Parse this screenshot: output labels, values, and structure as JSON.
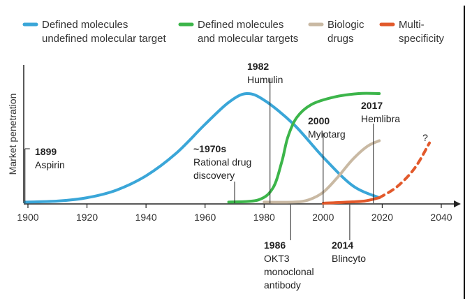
{
  "chart_data": {
    "type": "line",
    "title": "",
    "xlabel": "",
    "ylabel": "Market penetration",
    "xlim": [
      1899,
      2048
    ],
    "ylim": [
      0,
      100
    ],
    "x_ticks": [
      1900,
      1920,
      1940,
      1960,
      1980,
      2000,
      2020,
      2040
    ],
    "grid": false,
    "legend_position": "top",
    "series": [
      {
        "name": "Defined molecules undefined molecular target",
        "legend_lines": [
          "Defined molecules",
          "undefined molecular target"
        ],
        "color": "#3aa6d8",
        "style": "solid",
        "points": [
          [
            1899,
            1
          ],
          [
            1910,
            2
          ],
          [
            1920,
            5
          ],
          [
            1930,
            12
          ],
          [
            1940,
            25
          ],
          [
            1950,
            45
          ],
          [
            1960,
            72
          ],
          [
            1968,
            92
          ],
          [
            1974,
            100
          ],
          [
            1980,
            94
          ],
          [
            1990,
            72
          ],
          [
            2000,
            42
          ],
          [
            2010,
            16
          ],
          [
            2019,
            5
          ]
        ]
      },
      {
        "name": "Defined molecules and molecular targets",
        "legend_lines": [
          "Defined molecules",
          "and molecular targets"
        ],
        "color": "#3cb54a",
        "style": "solid",
        "points": [
          [
            1968,
            1
          ],
          [
            1978,
            3
          ],
          [
            1983,
            14
          ],
          [
            1986,
            38
          ],
          [
            1988,
            60
          ],
          [
            1991,
            78
          ],
          [
            1996,
            90
          ],
          [
            2004,
            97
          ],
          [
            2012,
            100
          ],
          [
            2019,
            100
          ]
        ]
      },
      {
        "name": "Biologic drugs",
        "legend_lines": [
          "Biologic",
          "drugs"
        ],
        "color": "#c9b9a3",
        "style": "solid",
        "points": [
          [
            1980,
            1
          ],
          [
            1990,
            1
          ],
          [
            1995,
            3
          ],
          [
            2000,
            10
          ],
          [
            2005,
            24
          ],
          [
            2010,
            40
          ],
          [
            2015,
            52
          ],
          [
            2019,
            57
          ]
        ]
      },
      {
        "name": "Multi-specificity",
        "legend_lines": [
          "Multi-",
          "specificity"
        ],
        "color": "#e2592b",
        "style": "solid",
        "points": [
          [
            2000,
            0
          ],
          [
            2008,
            1
          ],
          [
            2014,
            2
          ],
          [
            2019,
            5
          ]
        ]
      },
      {
        "name": "Multi-specificity (projected)",
        "legend_lines": [],
        "color": "#e2592b",
        "style": "dashed",
        "points": [
          [
            2019,
            5
          ],
          [
            2025,
            15
          ],
          [
            2031,
            32
          ],
          [
            2036,
            55
          ]
        ]
      }
    ],
    "annotations": [
      {
        "year": "1899",
        "text": [
          "Aspirin"
        ],
        "x": 1899,
        "line_top": 76
      },
      {
        "year": "~1970s",
        "text": [
          "Rational drug",
          "discovery"
        ],
        "x": 1970,
        "line_top": 18
      },
      {
        "year": "1982",
        "text": [
          "Humulin"
        ],
        "x": 1982,
        "line_top": 94
      },
      {
        "year": "1986",
        "text": [
          "OKT3",
          "monoclonal",
          "antibody"
        ],
        "x": 1989,
        "line_top": 0
      },
      {
        "year": "2000",
        "text": [
          "Mylotarg"
        ],
        "x": 2000,
        "line_top": 32
      },
      {
        "year": "2014",
        "text": [
          "Blincyto"
        ],
        "x": 2009,
        "line_top": 0
      },
      {
        "year": "2017",
        "text": [
          "Hemlibra"
        ],
        "x": 2017,
        "line_top": 57
      },
      {
        "year": "",
        "text": [
          "?"
        ],
        "x": 2036,
        "line_top": 0
      }
    ]
  }
}
